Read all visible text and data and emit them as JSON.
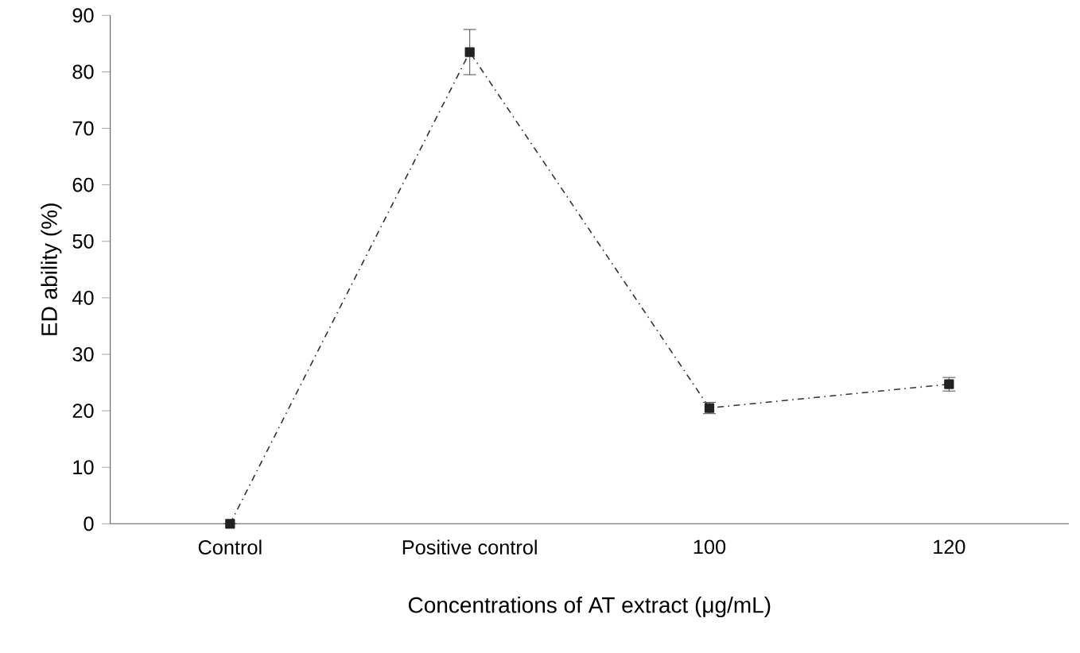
{
  "chart_data": {
    "type": "line",
    "categories": [
      "Control",
      "Positive control",
      "100",
      "120"
    ],
    "values": [
      0,
      83.5,
      20.5,
      24.7
    ],
    "errors": [
      null,
      4,
      1,
      1.2
    ],
    "color": "#222222",
    "xlabel": "Concentrations of AT extract (μg/mL)",
    "ylabel": "ED ability (%)",
    "ylim": [
      0,
      90
    ],
    "yticks": [
      0,
      10,
      20,
      30,
      40,
      50,
      60,
      70,
      80,
      90
    ],
    "marker": "square",
    "line_style": "dashed"
  }
}
